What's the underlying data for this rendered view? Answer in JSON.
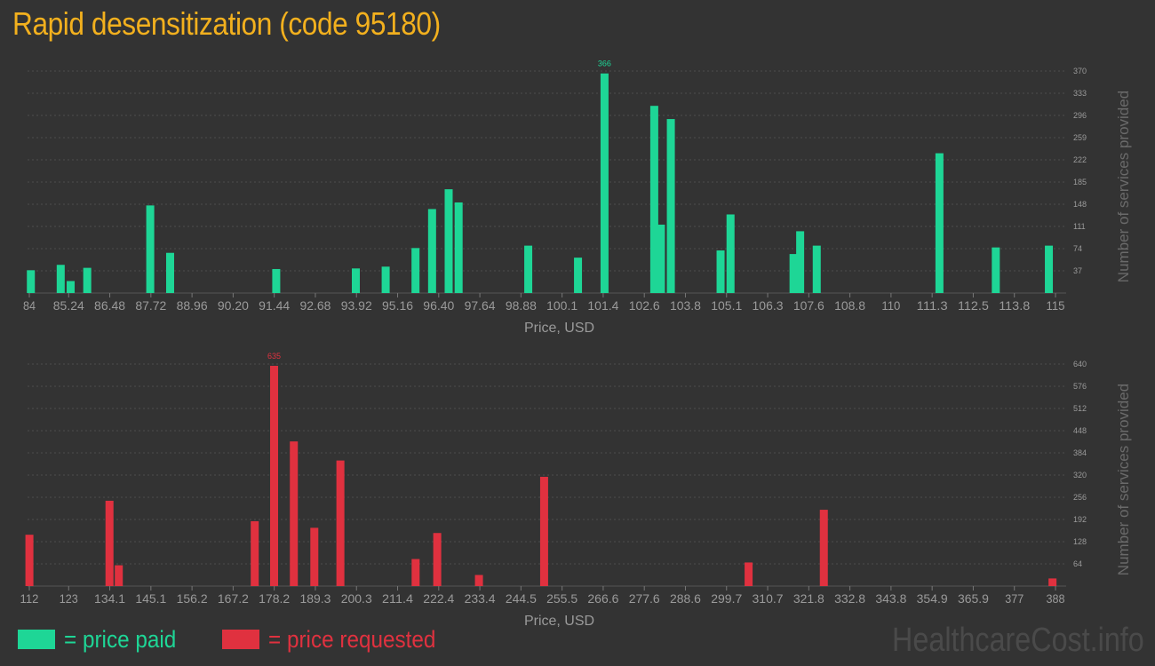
{
  "title": "Rapid desensitization (code 95180)",
  "colors": {
    "paid": "#1ed696",
    "requested": "#e0313f",
    "title": "#f2b01e",
    "background": "#333333",
    "axis_text": "#9a9a9a"
  },
  "legend": {
    "paid_label": "= price paid",
    "requested_label": "= price requested"
  },
  "watermark": "HealthcareCost.info",
  "chart_data": [
    {
      "type": "bar",
      "series_name": "price paid",
      "color_key": "paid",
      "xlabel": "Price, USD",
      "ylabel": "Number of services provided",
      "xlim": [
        84,
        115
      ],
      "ylim": [
        0,
        370
      ],
      "x_ticks": [
        "84",
        "85.24",
        "86.48",
        "87.72",
        "88.96",
        "90.20",
        "91.44",
        "92.68",
        "93.92",
        "95.16",
        "96.40",
        "97.64",
        "98.88",
        "100.1",
        "101.4",
        "102.6",
        "103.8",
        "105.1",
        "106.3",
        "107.6",
        "108.8",
        "110",
        "111.3",
        "112.5",
        "113.8",
        "115"
      ],
      "y_ticks": [
        "37",
        "74",
        "111",
        "148",
        "185",
        "222",
        "259",
        "296",
        "333",
        "370"
      ],
      "max_label": "366",
      "x": [
        84.1,
        85.0,
        85.3,
        85.8,
        87.7,
        88.3,
        91.5,
        93.9,
        94.8,
        95.7,
        96.2,
        96.7,
        97.0,
        99.1,
        100.6,
        101.4,
        102.9,
        103.1,
        103.4,
        104.9,
        105.2,
        107.1,
        107.3,
        107.8,
        111.5,
        113.2,
        114.8
      ],
      "values": [
        38,
        47,
        20,
        42,
        146,
        67,
        40,
        41,
        44,
        75,
        140,
        173,
        151,
        79,
        59,
        366,
        312,
        114,
        290,
        71,
        131,
        65,
        103,
        79,
        233,
        76,
        79
      ]
    },
    {
      "type": "bar",
      "series_name": "price requested",
      "color_key": "requested",
      "xlabel": "Price, USD",
      "ylabel": "Number of services provided",
      "xlim": [
        112,
        388
      ],
      "ylim": [
        0,
        640
      ],
      "x_ticks": [
        "112",
        "123",
        "134.1",
        "145.1",
        "156.2",
        "167.2",
        "178.2",
        "189.3",
        "200.3",
        "211.4",
        "222.4",
        "233.4",
        "244.5",
        "255.5",
        "266.6",
        "277.6",
        "288.6",
        "299.7",
        "310.7",
        "321.8",
        "332.8",
        "343.8",
        "354.9",
        "365.9",
        "377",
        "388"
      ],
      "y_ticks": [
        "64",
        "128",
        "192",
        "256",
        "320",
        "384",
        "448",
        "512",
        "576",
        "640"
      ],
      "max_label": "635",
      "x": [
        112.5,
        134.0,
        136.5,
        173.0,
        178.2,
        183.5,
        189.0,
        196.0,
        216.2,
        222.0,
        233.2,
        250.7,
        305.6,
        325.8,
        387.2
      ],
      "values": [
        148,
        246,
        60,
        187,
        635,
        417,
        168,
        362,
        78,
        153,
        32,
        315,
        68,
        220,
        22
      ]
    }
  ]
}
